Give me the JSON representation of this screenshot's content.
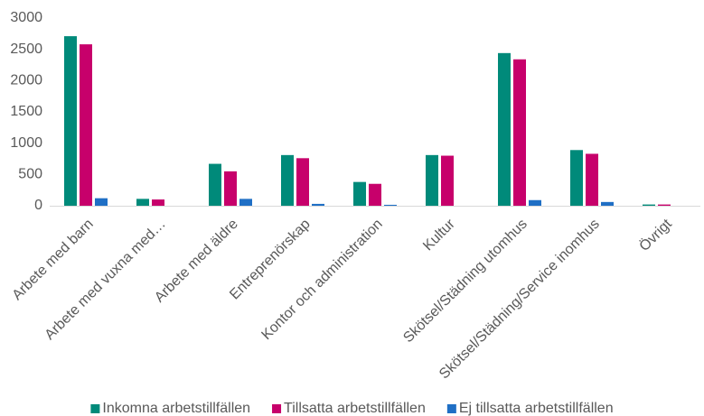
{
  "chart_data": {
    "type": "bar",
    "categories": [
      "Arbete med barn",
      "Arbete med vuxna med…",
      "Arbete med äldre",
      "Entreprenörskap",
      "Kontor och administration",
      "Kultur",
      "Skötsel/Städning utomhus",
      "Skötsel/Städning/Service inomhus",
      "Övrigt"
    ],
    "series": [
      {
        "name": "Inkomna arbetstillfällen",
        "color": "#008a7a",
        "values": [
          2710,
          110,
          670,
          810,
          380,
          810,
          2440,
          890,
          20
        ]
      },
      {
        "name": "Tillsatta arbetstillfällen",
        "color": "#c7006b",
        "values": [
          2580,
          100,
          550,
          760,
          350,
          800,
          2340,
          830,
          20
        ]
      },
      {
        "name": "Ej tillsatta arbetstillfällen",
        "color": "#1f6fc5",
        "values": [
          120,
          0,
          110,
          30,
          15,
          0,
          90,
          60,
          0
        ]
      }
    ],
    "ylim": [
      0,
      3000
    ],
    "yticks": [
      0,
      500,
      1000,
      1500,
      2000,
      2500,
      3000
    ],
    "grid": false,
    "legend": "bottom"
  }
}
